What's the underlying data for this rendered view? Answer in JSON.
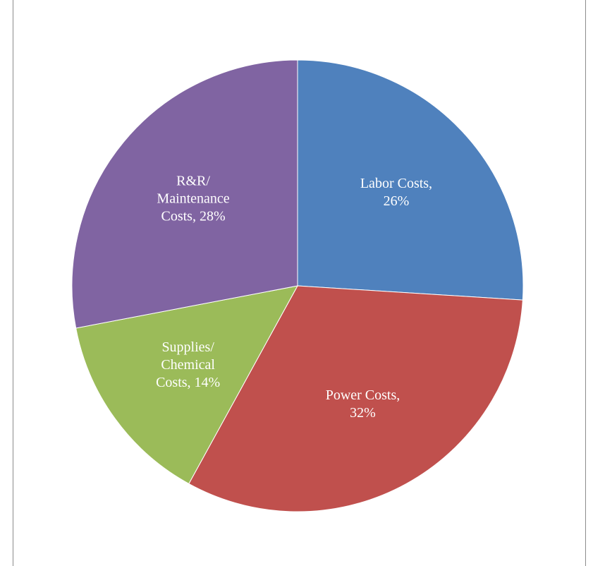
{
  "chart_data": {
    "type": "pie",
    "values": [
      26,
      32,
      14,
      28
    ],
    "value_labels": [
      [
        "Labor Costs,",
        "26%"
      ],
      [
        "Power Costs,",
        "32%"
      ],
      [
        "Supplies/",
        "Chemical",
        "Costs, 14%"
      ],
      [
        "R&R/",
        "Maintenance",
        "Costs, 28%"
      ]
    ],
    "colors": [
      "#4f81bd",
      "#c0504d",
      "#9bbb59",
      "#8064a2"
    ]
  }
}
